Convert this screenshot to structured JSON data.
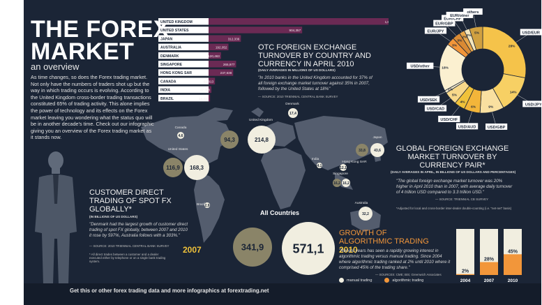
{
  "header": {
    "title_line1": "THE FOREX",
    "title_line2": "MARKET",
    "subtitle": "an overview",
    "intro": "As time changes, so does the Forex trading market. Not only have the numbers of traders shot up but the way in which trading occurs is evolving. According to the United Kingdom cross-border trading transactions constituted 65% of trading activity. This alone implies the power of technology and its effects on the Forex market leaving you wondering what the status quo will be in another decade's time. Check out our infographic giving you an overview of the Forex trading market as it stands now."
  },
  "otc": {
    "title": "OTC FOREIGN EXCHANGE TURNOVER BY COUNTRY AND CURRENCY IN APRIL 2010",
    "subtitle": "(DAILY AVERAGES IN MILLIONS OF US DOLLARS)",
    "quote": "\"In 2010 banks in the United Kingdom accounted for 37% of all foreign exchange market turnover against 35% in 2007, followed by the United States at 18%\"",
    "source": "— SOURCE: 2010 TRIENNIAL CENTRAL BANK SURVEY"
  },
  "chart_data": [
    {
      "type": "bar",
      "title": "OTC FOREIGN EXCHANGE TURNOVER BY COUNTRY AND CURRENCY IN APRIL 2010",
      "categories": [
        "UNITED KINGDOM",
        "UNITED STATES",
        "JAPAN",
        "AUSTRALIA",
        "DENMARK",
        "SINGAPORE",
        "HONG KONG SAR",
        "CANADA",
        "INDIA",
        "BRAZIL"
      ],
      "values": [
        1853594,
        904357,
        312336,
        192052,
        120463,
        265977,
        237638,
        61813,
        27358,
        14234
      ],
      "labels": [
        "1,853,594",
        "904,357",
        "312,336",
        "192,052",
        "120,463",
        "265,977",
        "237,638",
        "61,813",
        "27,358",
        "14,234"
      ]
    },
    {
      "type": "pie",
      "title": "GLOBAL FOREIGN EXCHANGE MARKET TURNOVER BY CURRENCY PAIR*",
      "subtitle": "(DAILY AVERAGES IN APRIL, IN BILLIONS OF US DOLLARS AND PERCENTAGES)",
      "categories": [
        "USD/EUR",
        "USD/JPY",
        "USD/GBP",
        "USD/AUD",
        "USD/CHF",
        "USD/CAD",
        "USD/SEK",
        "USD/other",
        "EUR/JPY",
        "EUR/GBP",
        "EUR/CHF",
        "EUR/other",
        "others"
      ],
      "values": [
        28,
        14,
        9,
        6,
        4,
        5,
        1,
        18,
        3,
        3,
        2,
        2,
        5
      ],
      "labels": [
        "28%",
        "14%",
        "9%",
        "6%",
        "4%",
        "5%",
        "1%",
        "18%",
        "3%",
        "3%",
        "2%",
        "2%",
        "5%"
      ]
    },
    {
      "type": "bar",
      "title": "GROWTH OF ALGORITHMIC TRADING",
      "categories": [
        "2004",
        "2007",
        "2010"
      ],
      "series": [
        {
          "name": "algorithmic trading",
          "values": [
            2,
            28,
            45
          ]
        },
        {
          "name": "manual trading",
          "values": [
            98,
            72,
            55
          ]
        }
      ],
      "labels": [
        "2%",
        "28%",
        "45%"
      ],
      "ylim": [
        0,
        100
      ]
    },
    {
      "type": "scatter",
      "title": "CUSTOMER DIRECT TRADING OF SPOT FX GLOBALLY*",
      "categories": [
        "Canada",
        "United States",
        "United Kingdom",
        "Denmark",
        "Japan",
        "Hong Kong SAR",
        "Singapore",
        "India",
        "Australia",
        "Brazil",
        "All Countries"
      ],
      "series": [
        {
          "name": "2007",
          "values": [
            null,
            116.9,
            94.3,
            null,
            33.8,
            null,
            null,
            null,
            null,
            null,
            341.9
          ]
        },
        {
          "name": "2010",
          "values": [
            4.6,
            168.3,
            214.8,
            17.4,
            43.6,
            12.1,
            16.2,
            4.1,
            32.2,
            2.9,
            571.1
          ]
        }
      ],
      "map_labels": [
        "Canada",
        "United States",
        "United Kingdom",
        "Denmark",
        "Japan",
        "Hong Kong SAR",
        "Singapore",
        "India",
        "Australia",
        "Brazil"
      ],
      "total_label": "All Countries"
    }
  ],
  "bubbles": {
    "canada_2010": "4,6",
    "us_2007": "116,9",
    "us_2010": "168,3",
    "uk_2007": "94,3",
    "uk_2010": "214,8",
    "denmark_2010": "17,4",
    "japan_2007": "33,8",
    "japan_2010": "43,6",
    "hk_2010": "12,1",
    "singapore_a": "16,2",
    "singapore_b": "16,2",
    "india_2010": "4,1",
    "australia_2010": "32,2",
    "brazil_2010": "2,9",
    "all_2007": "341,9",
    "all_2010": "571,1",
    "year_2007": "2007",
    "year_2010": "2010"
  },
  "cdt": {
    "title": "CUSTOMER DIRECT TRADING OF SPOT FX GLOBALLY*",
    "subtitle": "(IN BILLIONS OF US DOLLARS)",
    "quote": "\"Denmark had the largest growth of customer direct trading of spot FX globally, between 2007 and 2010 it rose by 597%, Australia follows with a 303%.\"",
    "source": "— SOURCE: 2010 TRIENNIAL CENTRAL BANK SURVEY",
    "note": "* All direct trades between a customer and a dealer executed either by telephone or on a single bank trading system."
  },
  "gfx": {
    "title": "GLOBAL FOREIGN EXCHANGE MARKET TURNOVER BY CURRENCY PAIR*",
    "subtitle": "(DAILY AVERAGES IN APRIL, IN BILLIONS OF US DOLLARS AND PERCENTAGES)",
    "quote": "\"The global foreign exchange market turnover was 20% higher in April 2010 than in 2007, with average daily turnover of 4 trillion USD compared to 3.3 trillion USD.\"",
    "source": "— SOURCE: TRIENNIAL CB SURVEY",
    "note": "*Adjusted for local and cross-border inter-dealer double-counting (i.e. \"net-net\" basis)"
  },
  "algo": {
    "title_line1": "GROWTH OF",
    "title_line2": "ALGORITHMIC TRADING",
    "quote": "\"Recent years has seen a rapidly growing interest in algorithmic trading versus manual trading. Since 2004 where algorithmic trading ranked at 2% until 2010 where it comprised 45% of the trading share.\"",
    "source": "— SOURCES: CME; BIS; Greenwich Associates",
    "legend_manual": "manual trading",
    "legend_algo": "algorithmic trading"
  },
  "footer": {
    "text": "Get this or other forex trading data and more infographics at forextrading.net"
  },
  "colors": {
    "bg": "#1b2536",
    "accent": "#f2963a",
    "gold": "#f0c23a",
    "bubble_2007": "#8a8468",
    "bubble_2010": "#f1eee0"
  }
}
